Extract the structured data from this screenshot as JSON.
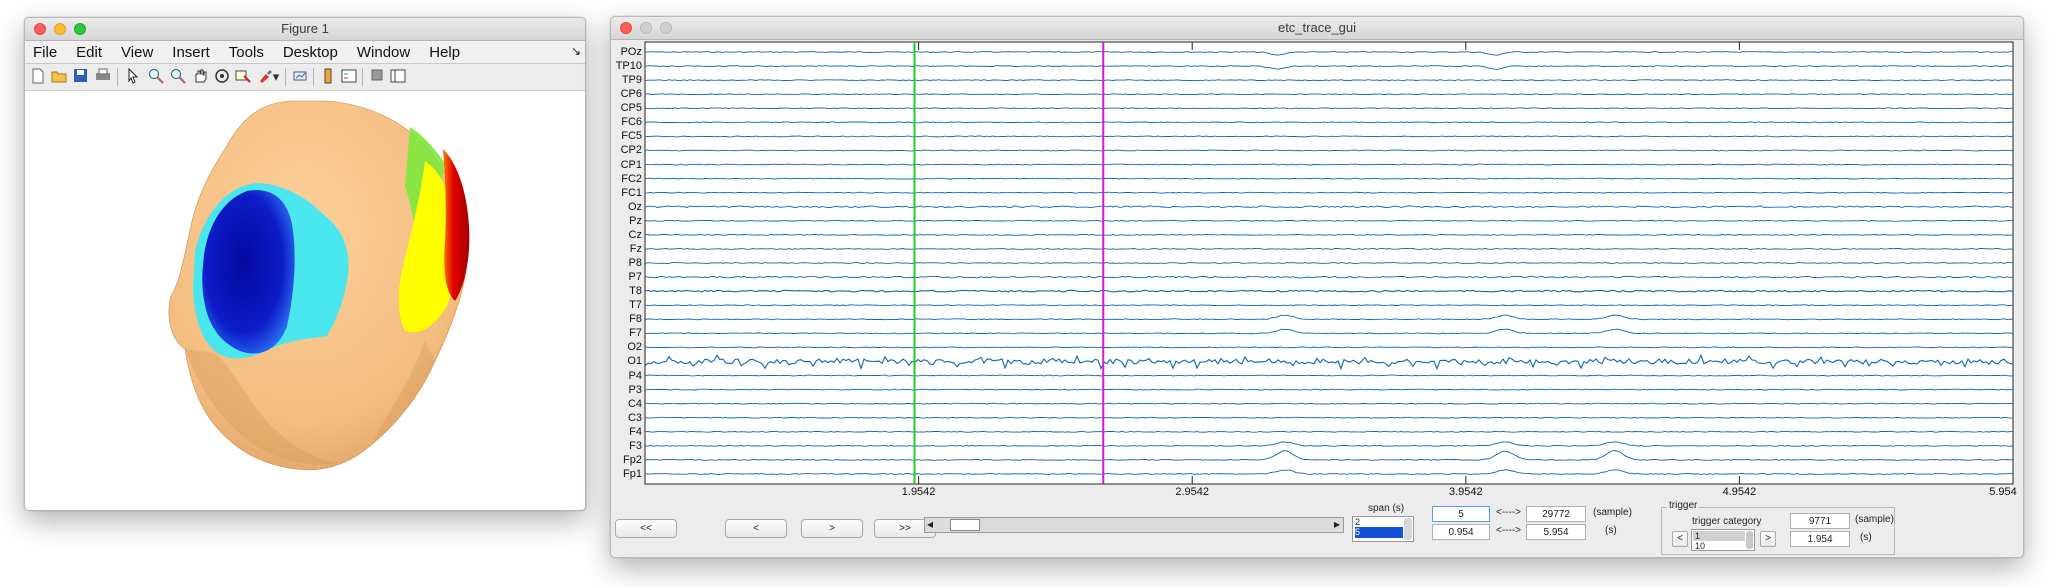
{
  "figure_window": {
    "title": "Figure 1",
    "menu": [
      "File",
      "Edit",
      "View",
      "Insert",
      "Tools",
      "Desktop",
      "Window",
      "Help"
    ],
    "dock_symbol": "↘",
    "toolbar_icons": [
      "new-figure-icon",
      "open-file-icon",
      "save-icon",
      "print-icon",
      "pointer-icon",
      "zoom-in-icon",
      "zoom-out-icon",
      "pan-hand-icon",
      "rotate-3d-icon",
      "data-cursor-icon",
      "brush-icon",
      "link-plot-icon",
      "colorbar-icon",
      "legend-icon",
      "hide-plot-tools-icon",
      "show-plot-tools-icon"
    ],
    "head_colors": {
      "skin": "#f7c48a",
      "blue": "#0a14b4",
      "cyan": "#3fe6f0",
      "yellow": "#ffff00",
      "red": "#c40000"
    }
  },
  "trace_window": {
    "title": "etc_trace_gui",
    "channels": [
      "POz",
      "TP10",
      "TP9",
      "CP6",
      "CP5",
      "FC6",
      "FC5",
      "CP2",
      "CP1",
      "FC2",
      "FC1",
      "Oz",
      "Pz",
      "Cz",
      "Fz",
      "P8",
      "P7",
      "T8",
      "T7",
      "F8",
      "F7",
      "O2",
      "O1",
      "P4",
      "P3",
      "C4",
      "C3",
      "F4",
      "F3",
      "Fp2",
      "Fp1"
    ],
    "x_ticks": [
      "1.9542",
      "2.9542",
      "3.9542",
      "4.9542",
      "5.954"
    ],
    "trace_color": "#0b66b5",
    "cursor_colors": {
      "green": "#22cc22",
      "magenta": "#dd11dd"
    },
    "nav_buttons": [
      "<<",
      "<",
      ">",
      ">>"
    ],
    "slider": {
      "left_arrow": "◂",
      "right_arrow": "▸",
      "position": 0.03
    },
    "span": {
      "label": "span (s)",
      "options": [
        "2",
        "5"
      ],
      "selected": "5"
    },
    "time_controls": {
      "span_value": "5",
      "start_time": "0.954",
      "arrow_symbol": "<---->",
      "sample_value": "29772",
      "time_value": "5.954",
      "sample_unit": "(sample)",
      "sec_unit": "(s)"
    },
    "trigger": {
      "group_label": "trigger",
      "category_label": "trigger category",
      "list_items": [
        "1",
        "10"
      ],
      "prev": "<",
      "next": ">",
      "sample_value": "9771",
      "sample_unit": "(sample)",
      "time_value": "1.954",
      "sec_unit": "(s)"
    }
  }
}
